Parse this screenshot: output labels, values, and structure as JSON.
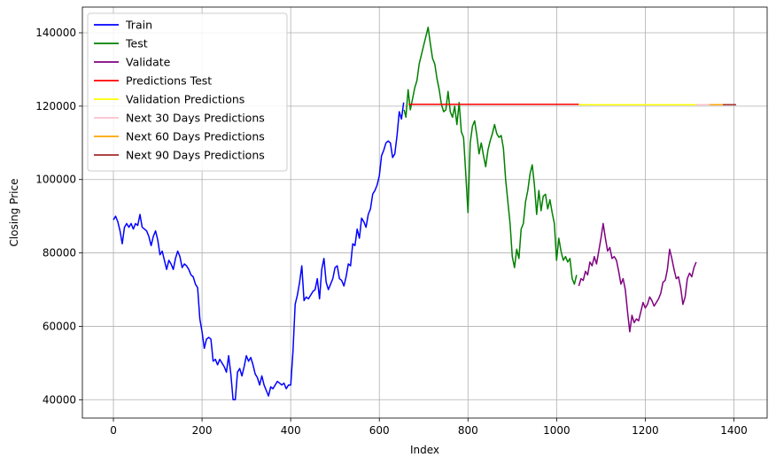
{
  "chart_data": {
    "type": "line",
    "title": "",
    "xlabel": "Index",
    "ylabel": "Closing Price",
    "xlim": [
      -70,
      1475
    ],
    "ylim": [
      35000,
      147000
    ],
    "xticks": [
      0,
      200,
      400,
      600,
      800,
      1000,
      1200,
      1400
    ],
    "yticks": [
      40000,
      60000,
      80000,
      100000,
      120000,
      140000
    ],
    "grid": true,
    "legend_position": "top-left",
    "series": [
      {
        "name": "Train",
        "color": "#0000ff",
        "x": [
          0,
          5,
          10,
          15,
          20,
          25,
          30,
          35,
          40,
          45,
          50,
          55,
          60,
          65,
          70,
          75,
          80,
          85,
          90,
          95,
          100,
          105,
          110,
          115,
          120,
          125,
          130,
          135,
          140,
          145,
          150,
          155,
          160,
          165,
          170,
          175,
          180,
          185,
          190,
          195,
          200,
          205,
          210,
          215,
          220,
          225,
          230,
          235,
          240,
          245,
          250,
          255,
          260,
          265,
          270,
          275,
          280,
          285,
          290,
          295,
          300,
          305,
          310,
          315,
          320,
          325,
          330,
          335,
          340,
          345,
          350,
          355,
          360,
          365,
          370,
          375,
          380,
          385,
          390,
          395,
          400,
          405,
          410,
          415,
          420,
          425,
          430,
          435,
          440,
          445,
          450,
          455,
          460,
          465,
          470,
          475,
          480,
          485,
          490,
          495,
          500,
          505,
          510,
          515,
          520,
          525,
          530,
          535,
          540,
          545,
          550,
          555,
          560,
          565,
          570,
          575,
          580,
          585,
          590,
          595,
          600,
          605,
          610,
          615,
          620,
          625,
          630,
          635,
          640,
          645,
          650,
          655
        ],
        "y": [
          89000,
          90000,
          88500,
          86000,
          82500,
          87000,
          88000,
          87000,
          88000,
          86500,
          88000,
          87500,
          90500,
          87000,
          86500,
          86000,
          84500,
          82000,
          84500,
          86000,
          83500,
          79500,
          80500,
          78000,
          75500,
          78000,
          77000,
          75500,
          78500,
          80500,
          79000,
          76000,
          77000,
          76500,
          75500,
          74000,
          73500,
          71500,
          70500,
          62000,
          58500,
          54000,
          56500,
          57000,
          56500,
          50500,
          51000,
          49500,
          51000,
          50000,
          49000,
          47500,
          52000,
          47000,
          40000,
          40000,
          47500,
          48500,
          46500,
          49000,
          52000,
          50500,
          51500,
          49500,
          47000,
          46000,
          44000,
          46500,
          44000,
          42500,
          41000,
          43500,
          43000,
          44000,
          45000,
          44500,
          44000,
          44500,
          43000,
          44000,
          44000,
          53000,
          66000,
          68500,
          72000,
          76500,
          67000,
          68000,
          67500,
          68500,
          69500,
          70000,
          73000,
          67500,
          75500,
          78500,
          72000,
          70000,
          71500,
          73000,
          76000,
          76500,
          73000,
          72500,
          71000,
          73500,
          77000,
          76500,
          82500,
          82000,
          86500,
          84000,
          89500,
          88500,
          87000,
          90500,
          92000,
          96000,
          97000,
          98500,
          101000,
          106500,
          108000,
          110000,
          110500,
          110000,
          106000,
          107000,
          112000,
          118500,
          116500,
          121000
        ]
      },
      {
        "name": "Test",
        "color": "#008000",
        "x": [
          656,
          660,
          665,
          670,
          675,
          680,
          685,
          690,
          695,
          700,
          705,
          710,
          715,
          720,
          725,
          730,
          735,
          740,
          745,
          750,
          755,
          760,
          765,
          770,
          775,
          780,
          785,
          790,
          795,
          800,
          805,
          810,
          815,
          820,
          825,
          830,
          835,
          840,
          845,
          850,
          855,
          860,
          865,
          870,
          875,
          880,
          885,
          890,
          895,
          900,
          905,
          910,
          915,
          920,
          925,
          930,
          935,
          940,
          945,
          950,
          955,
          960,
          965,
          970,
          975,
          980,
          985,
          990,
          995,
          1000,
          1005,
          1010,
          1015,
          1020,
          1025,
          1030,
          1035,
          1040,
          1045
        ],
        "y": [
          119000,
          117000,
          124500,
          119000,
          122000,
          125000,
          127000,
          131500,
          134000,
          136500,
          139000,
          141500,
          137000,
          133000,
          131500,
          127500,
          124500,
          120500,
          118500,
          119000,
          124000,
          118500,
          117000,
          120000,
          115000,
          121000,
          113000,
          111500,
          101500,
          91000,
          110000,
          114500,
          116000,
          112000,
          107000,
          110000,
          106500,
          103500,
          108000,
          110500,
          112500,
          115000,
          112500,
          111500,
          112000,
          108500,
          100000,
          94000,
          88000,
          79000,
          76000,
          81000,
          78500,
          86500,
          88000,
          94000,
          97000,
          101500,
          104000,
          98500,
          90500,
          97000,
          91500,
          95500,
          96000,
          92000,
          94500,
          91000,
          88000,
          78000,
          84000,
          80500,
          78000,
          79000,
          77500,
          78500,
          73000,
          71500,
          74000
        ]
      },
      {
        "name": "Validate",
        "color": "#800080",
        "x": [
          1050,
          1055,
          1060,
          1065,
          1070,
          1075,
          1080,
          1085,
          1090,
          1095,
          1100,
          1105,
          1110,
          1115,
          1120,
          1125,
          1130,
          1135,
          1140,
          1145,
          1150,
          1155,
          1160,
          1165,
          1170,
          1175,
          1180,
          1185,
          1190,
          1195,
          1200,
          1205,
          1210,
          1215,
          1220,
          1225,
          1230,
          1235,
          1240,
          1245,
          1250,
          1255,
          1260,
          1265,
          1270,
          1275,
          1280,
          1285,
          1290,
          1295,
          1300,
          1305,
          1310,
          1315
        ],
        "y": [
          71000,
          73000,
          72500,
          75000,
          74000,
          77500,
          76500,
          79000,
          77000,
          80500,
          84000,
          88000,
          84000,
          80500,
          81500,
          78500,
          79000,
          78000,
          75000,
          71500,
          73000,
          70000,
          64000,
          58500,
          63000,
          61000,
          62000,
          61500,
          64000,
          66500,
          65000,
          66000,
          68000,
          67000,
          65500,
          66500,
          67500,
          69000,
          72000,
          72500,
          75500,
          81000,
          78500,
          75500,
          73000,
          73500,
          70500,
          66000,
          68000,
          73000,
          74500,
          73500,
          76000,
          77500
        ]
      },
      {
        "name": "Predictions Test",
        "color": "#ff0000",
        "x": [
          666,
          1050
        ],
        "y": [
          120500,
          120500
        ]
      },
      {
        "name": "Validation Predictions",
        "color": "#ffff00",
        "x": [
          1050,
          1315
        ],
        "y": [
          120400,
          120400
        ]
      },
      {
        "name": "Next 30 Days Predictions",
        "color": "#ffc0cb",
        "x": [
          1315,
          1345
        ],
        "y": [
          120400,
          120400
        ]
      },
      {
        "name": "Next 60 Days Predictions",
        "color": "#ffa500",
        "x": [
          1345,
          1375
        ],
        "y": [
          120400,
          120400
        ]
      },
      {
        "name": "Next 90 Days Predictions",
        "color": "#a52a2a",
        "x": [
          1375,
          1405
        ],
        "y": [
          120400,
          120400
        ]
      }
    ]
  }
}
